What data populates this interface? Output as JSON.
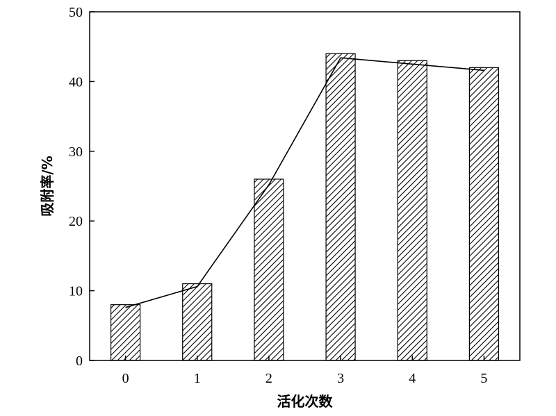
{
  "chart_data": {
    "type": "bar",
    "title": "",
    "xlabel": "活化次数",
    "ylabel": "吸附率/%",
    "categories": [
      "0",
      "1",
      "2",
      "3",
      "4",
      "5"
    ],
    "series": [
      {
        "type": "bar",
        "values": [
          8,
          11,
          26,
          44,
          43,
          42
        ],
        "pattern": "diagonal-hatch"
      },
      {
        "type": "line",
        "values": [
          7.6,
          10.6,
          25.2,
          43.4,
          42.5,
          41.6
        ]
      }
    ],
    "ylim": [
      0,
      50
    ],
    "yticks": [
      0,
      10,
      20,
      30,
      40,
      50
    ],
    "grid": false,
    "legend": "none",
    "colors": {
      "bar_fill": "#ffffff",
      "hatch": "#000000",
      "line": "#000000",
      "axis": "#000000"
    }
  }
}
